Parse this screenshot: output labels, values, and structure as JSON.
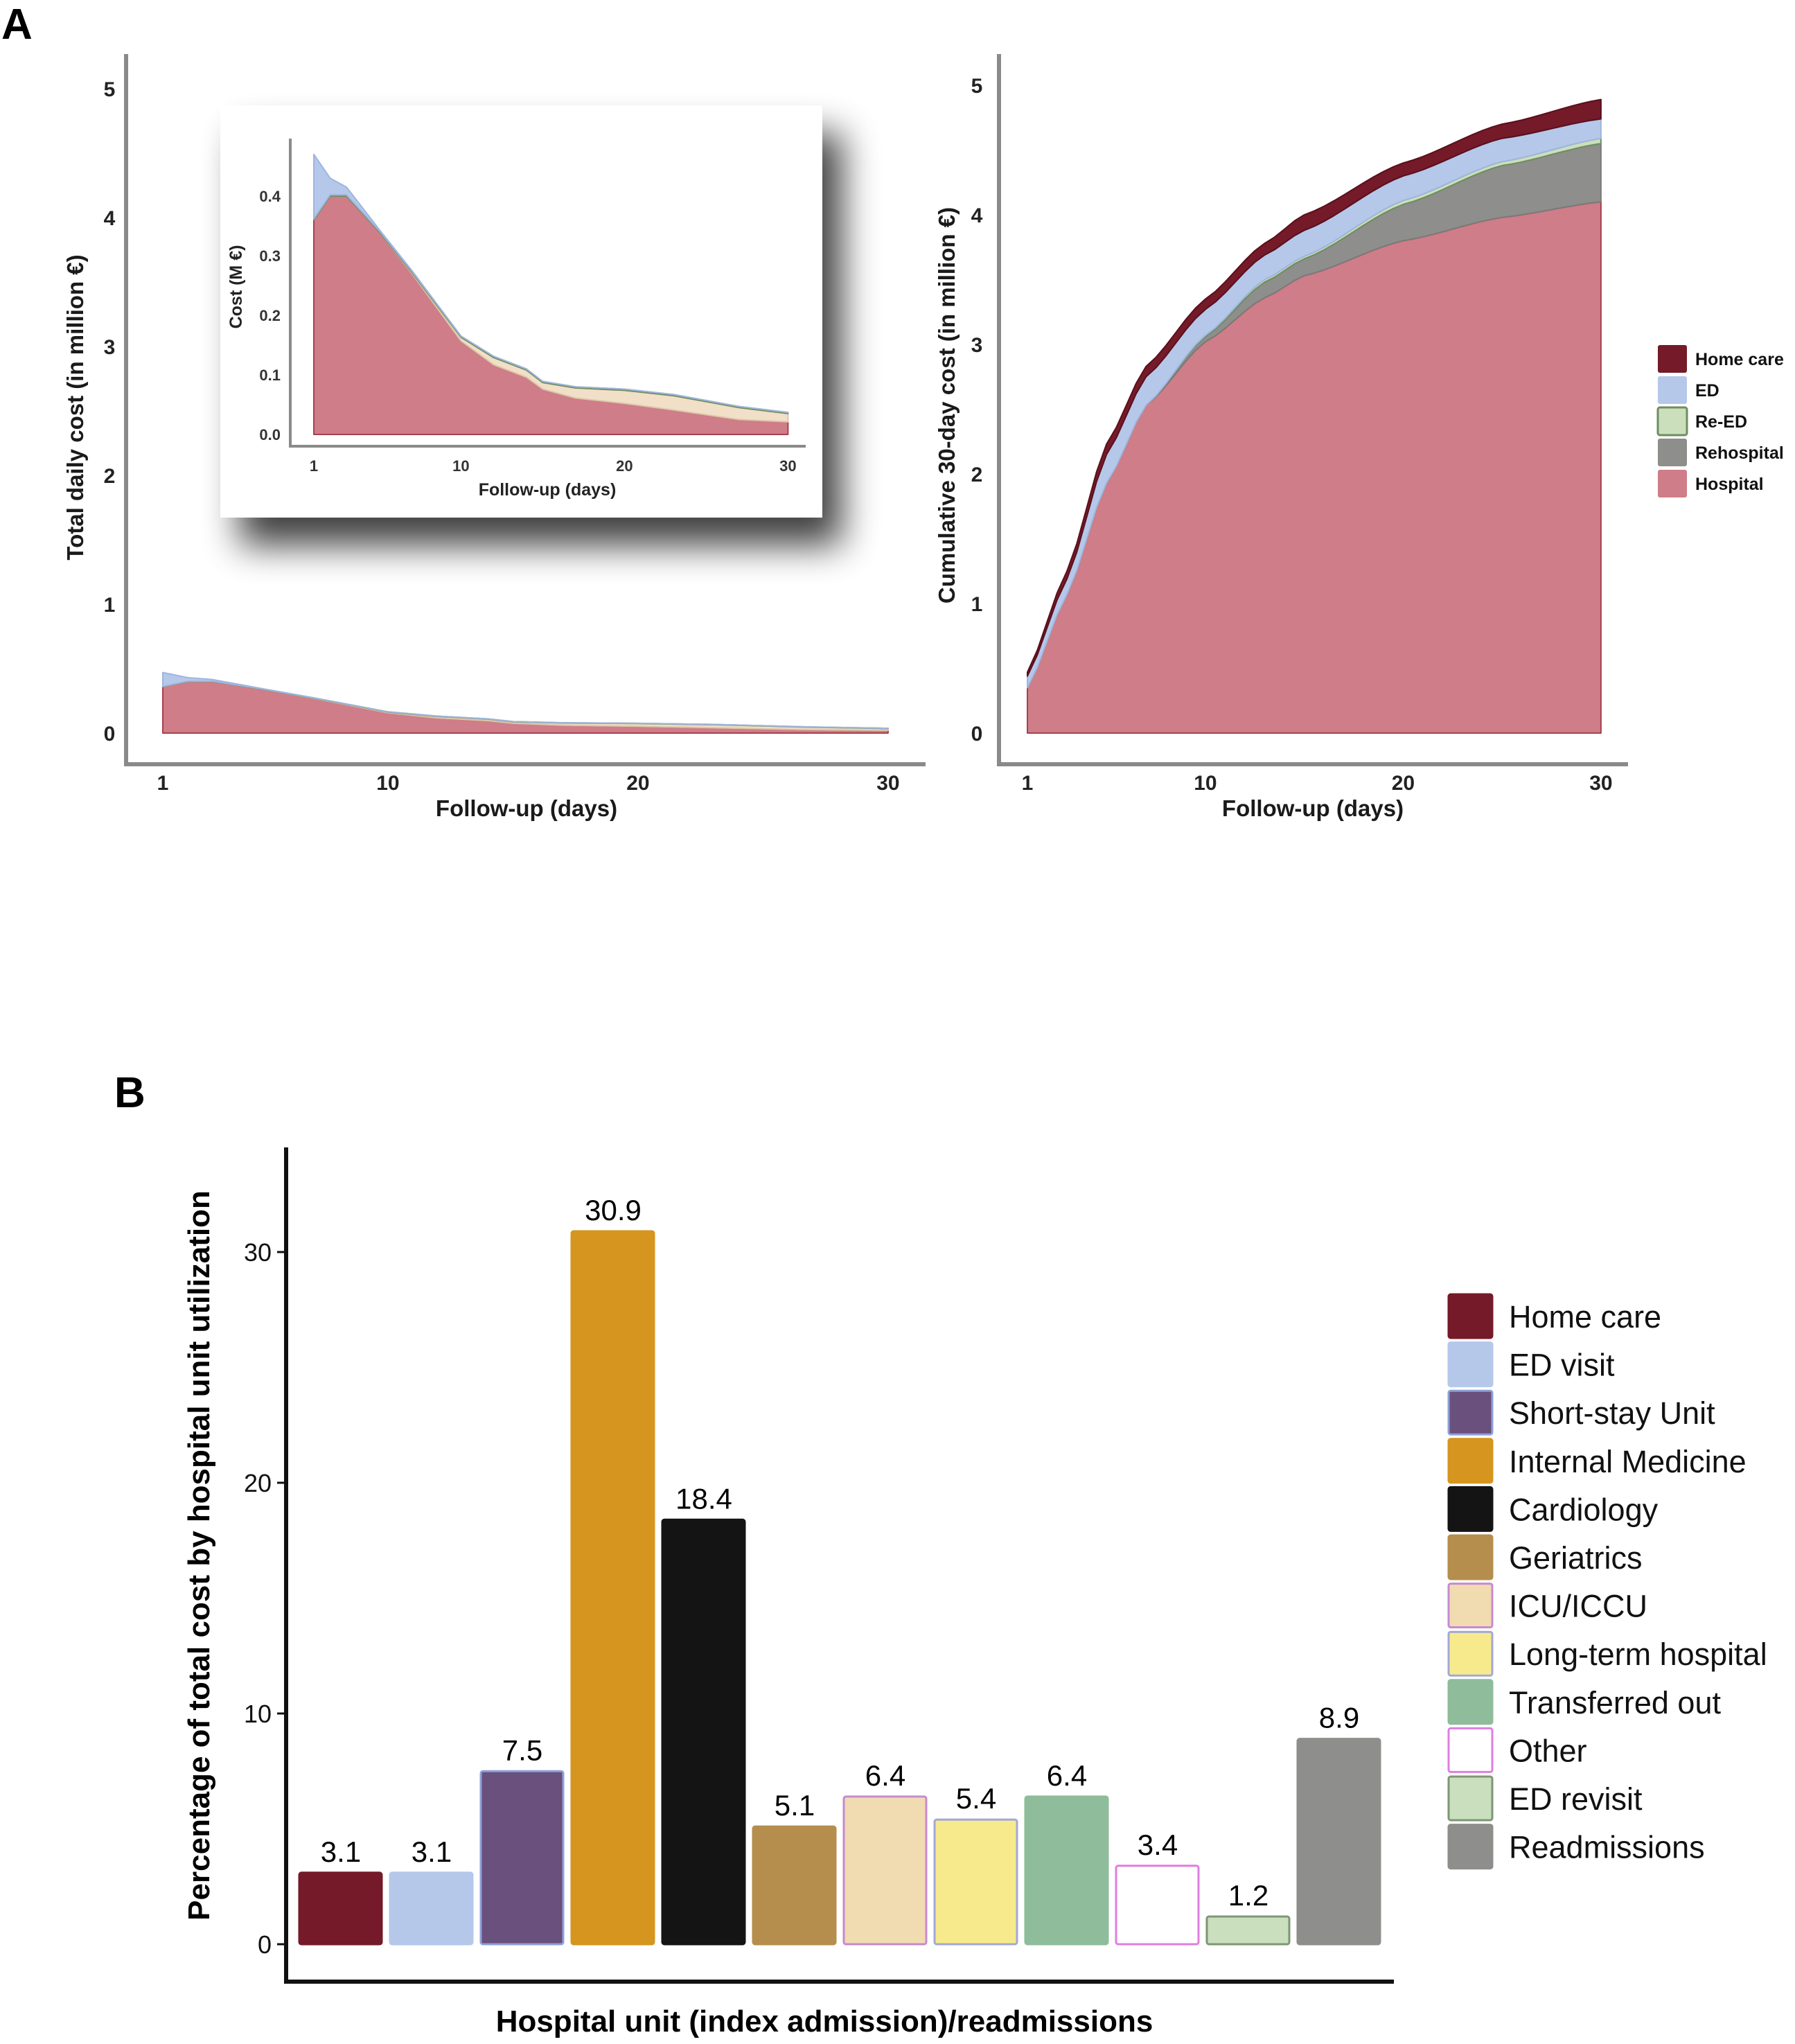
{
  "figure": {
    "panel_a_letter": "A",
    "panel_b_letter": "B"
  },
  "colors": {
    "home_care": "#741a28",
    "ed": "#b5c8ea",
    "re_ed": "#cbdfbd",
    "rehospital": "#8e8e8c",
    "hospital": "#cf7d88",
    "icu_band": "#f1dfc8",
    "short_stay": "#6a507c",
    "internal_medicine": "#d5951e",
    "cardiology": "#141414",
    "geriatrics": "#b58e4d",
    "icu_iccu": "#f1dcb2",
    "long_term": "#f7ea8c",
    "transferred_out": "#8fbc9a",
    "other": "#ffffff",
    "ed_revisit": "#cadfbd",
    "readmissions": "#8e8e8c"
  },
  "chart_data": [
    {
      "id": "daily_cost",
      "type": "area",
      "stacked": true,
      "title": "",
      "xlabel": "Follow-up (days)",
      "ylabel": "Total daily cost (in million €)",
      "xlim": [
        1,
        30
      ],
      "ylim": [
        0,
        5
      ],
      "xticks": [
        1,
        10,
        20,
        30
      ],
      "yticks": [
        0,
        1,
        2,
        3,
        4,
        5
      ],
      "grid": false,
      "x": [
        1,
        2,
        3,
        5,
        7,
        10,
        12,
        14,
        15,
        17,
        20,
        23,
        25,
        27,
        30
      ],
      "series": [
        {
          "name": "Hospital",
          "color_key": "hospital",
          "values": [
            0.36,
            0.4,
            0.4,
            0.34,
            0.27,
            0.157,
            0.117,
            0.096,
            0.076,
            0.061,
            0.052,
            0.041,
            0.033,
            0.025,
            0.021
          ]
        },
        {
          "name": "Rehospital",
          "color_key": "icu_band",
          "values": [
            0.0,
            0.0,
            0.0,
            0.0,
            0.002,
            0.006,
            0.012,
            0.012,
            0.011,
            0.017,
            0.022,
            0.024,
            0.022,
            0.02,
            0.014
          ]
        },
        {
          "name": "Re-ED",
          "color_key": "re_ed",
          "values": [
            0.002,
            0.002,
            0.002,
            0.002,
            0.002,
            0.002,
            0.002,
            0.002,
            0.002,
            0.002,
            0.002,
            0.002,
            0.002,
            0.002,
            0.002
          ]
        },
        {
          "name": "ED",
          "color_key": "ed",
          "values": [
            0.108,
            0.028,
            0.013,
            0.002,
            0.001,
            0.0,
            0.0,
            0.0,
            0.0,
            0.0,
            0.0,
            0.0,
            0.0,
            0.0,
            0.0
          ]
        },
        {
          "name": "Home care",
          "color_key": "home_care",
          "values": [
            0.0,
            0.0,
            0.0,
            0.0,
            0.0,
            0.0,
            0.0,
            0.0,
            0.0,
            0.0,
            0.0,
            0.0,
            0.0,
            0.0,
            0.0
          ]
        }
      ]
    },
    {
      "id": "daily_cost_inset",
      "type": "area",
      "stacked": true,
      "xlabel": "Follow-up (days)",
      "ylabel": "Cost (M €)",
      "xlim": [
        1,
        30
      ],
      "ylim": [
        0,
        0.48
      ],
      "xticks": [
        1,
        10,
        20,
        30
      ],
      "yticks": [
        "0.0",
        "0.1",
        "0.2",
        "0.3",
        "0.4"
      ],
      "grid": false,
      "note": "zoomed view of the daily cost series"
    },
    {
      "id": "cumulative_cost",
      "type": "area",
      "stacked": true,
      "xlabel": "Follow-up (days)",
      "ylabel": "Cumulative 30-day cost (in million €)",
      "xlim": [
        1,
        30
      ],
      "ylim": [
        0,
        5
      ],
      "xticks": [
        1,
        10,
        20,
        30
      ],
      "yticks": [
        0,
        1,
        2,
        3,
        4,
        5
      ],
      "grid": false,
      "legend_position": "right",
      "x": [
        1,
        3,
        5,
        7,
        10,
        13,
        15,
        20,
        25,
        30
      ],
      "series": [
        {
          "name": "Hospital",
          "color_key": "hospital",
          "values": [
            0.35,
            1.07,
            1.93,
            2.53,
            3.02,
            3.36,
            3.53,
            3.8,
            3.98,
            4.1
          ]
        },
        {
          "name": "Rehospital",
          "color_key": "rehospital",
          "values": [
            0.0,
            0.0,
            0.0,
            0.0,
            0.04,
            0.12,
            0.13,
            0.28,
            0.4,
            0.45
          ]
        },
        {
          "name": "Re-ED",
          "color_key": "re_ed",
          "values": [
            0.0,
            0.0,
            0.0,
            0.0,
            0.01,
            0.02,
            0.02,
            0.03,
            0.03,
            0.04
          ]
        },
        {
          "name": "ED",
          "color_key": "ed",
          "values": [
            0.09,
            0.12,
            0.22,
            0.22,
            0.2,
            0.19,
            0.2,
            0.19,
            0.18,
            0.15
          ]
        },
        {
          "name": "Home care",
          "color_key": "home_care",
          "values": [
            0.03,
            0.06,
            0.08,
            0.08,
            0.08,
            0.09,
            0.12,
            0.1,
            0.11,
            0.15
          ]
        }
      ],
      "legend": [
        "Home care",
        "ED",
        "Re-ED",
        "Rehospital",
        "Hospital"
      ]
    },
    {
      "id": "cost_by_unit",
      "type": "bar",
      "xlabel": "Hospital unit (index admission)/readmissions",
      "ylabel": "Percentage of total cost by hospital unit utilization",
      "ylim": [
        0,
        35
      ],
      "yticks": [
        0,
        10,
        20,
        30
      ],
      "grid": false,
      "legend_position": "right",
      "categories": [
        "Home care",
        "ED visit",
        "Short-stay Unit",
        "Internal Medicine",
        "Cardiology",
        "Geriatrics",
        "ICU/ICCU",
        "Long-term hospital",
        "Transferred out",
        "Other",
        "ED revisit",
        "Readmissions"
      ],
      "values": [
        3.1,
        3.1,
        7.5,
        30.9,
        18.4,
        5.1,
        6.4,
        5.4,
        6.4,
        3.4,
        1.2,
        8.9
      ],
      "value_labels": [
        "3.1",
        "3.1",
        "7.5",
        "30.9",
        "18.4",
        "5.1",
        "6.4",
        "5.4",
        "6.4",
        "3.4",
        "1.2",
        "8.9"
      ],
      "color_keys": [
        "home_care",
        "ed",
        "short_stay",
        "internal_medicine",
        "cardiology",
        "geriatrics",
        "icu_iccu",
        "long_term",
        "transferred_out",
        "other",
        "ed_revisit",
        "readmissions"
      ],
      "border_colors": [
        "#741a28",
        "#b5c8ea",
        "#8da0d8",
        "#d5951e",
        "#141414",
        "#b58e4d",
        "#c58ad0",
        "#a2a8d6",
        "#8fbc9a",
        "#e07de0",
        "#7d9677",
        "#8e8e8c"
      ]
    }
  ]
}
